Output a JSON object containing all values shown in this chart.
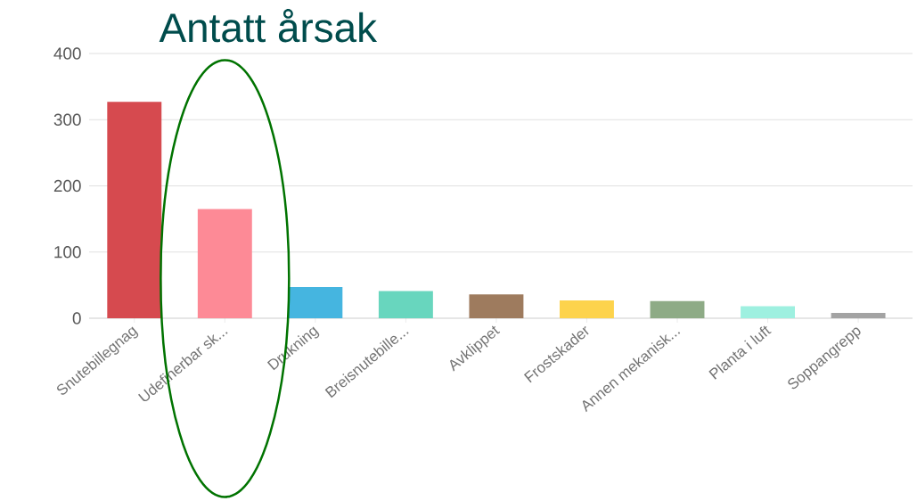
{
  "chart_data": {
    "type": "bar",
    "title": "Antatt årsak",
    "categories": [
      "Snutebillegnag",
      "Udefinerbar sk...",
      "Drukning",
      "Breisnutebille...",
      "Avklippet",
      "Frostskader",
      "Annen mekanisk...",
      "Planta i luft",
      "Soppangrepp"
    ],
    "values": [
      327,
      165,
      47,
      41,
      36,
      27,
      26,
      18,
      8
    ],
    "colors": [
      "#d64a4f",
      "#fd8a96",
      "#45b5e0",
      "#68d6be",
      "#9e7b5e",
      "#fdd34c",
      "#8eab86",
      "#9ef0e0",
      "#a3a3a3"
    ],
    "ylim": [
      0,
      400
    ],
    "yticks": [
      0,
      100,
      200,
      300,
      400
    ],
    "grid": "y"
  }
}
